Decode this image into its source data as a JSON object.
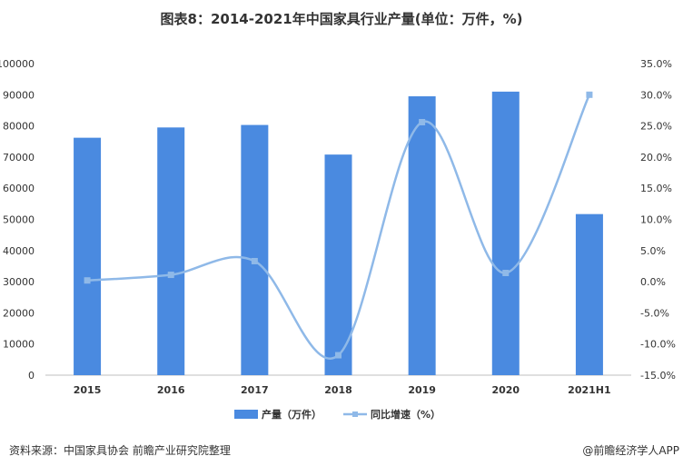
{
  "chart_data": {
    "type": "bar",
    "title": "图表8：2014-2021年中国家具行业产量(单位：万件，%)",
    "categories": [
      "2015",
      "2016",
      "2017",
      "2018",
      "2019",
      "2020",
      "2021H1"
    ],
    "series": [
      {
        "name": "产量（万件）",
        "type": "bar",
        "axis": "left",
        "color": "#4a8ae0",
        "values": [
          76200,
          79500,
          80300,
          70800,
          89500,
          91000,
          51700
        ]
      },
      {
        "name": "同比增速（%）",
        "type": "line",
        "axis": "right",
        "color": "#8fb9e8",
        "values": [
          0.2,
          1.1,
          3.3,
          -11.8,
          25.6,
          1.4,
          30.0
        ]
      }
    ],
    "y_left": {
      "ylim": [
        0,
        100000
      ],
      "ticks": [
        "0",
        "10000",
        "20000",
        "30000",
        "40000",
        "50000",
        "60000",
        "70000",
        "80000",
        "90000",
        "100000"
      ]
    },
    "y_right": {
      "ylim": [
        -15,
        35
      ],
      "ticks": [
        "-15.0%",
        "-10.0%",
        "-5.0%",
        "0.0%",
        "5.0%",
        "10.0%",
        "15.0%",
        "20.0%",
        "25.0%",
        "30.0%",
        "35.0%"
      ]
    },
    "legend_position": "bottom",
    "grid": false
  },
  "footer": {
    "source": "资料来源：中国家具协会 前瞻产业研究院整理",
    "credit": "@前瞻经济学人APP"
  }
}
